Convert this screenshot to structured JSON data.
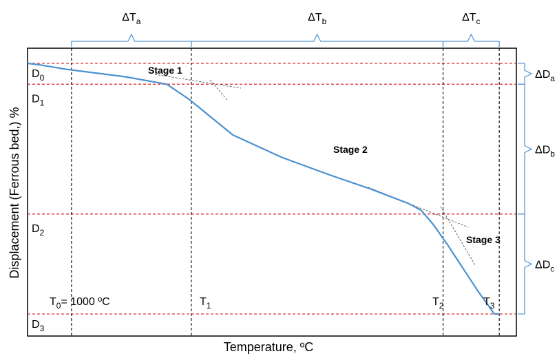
{
  "chart_data": {
    "type": "line",
    "title": "",
    "xlabel": "Temperature, ºC",
    "ylabel": "Displacement (Ferrous bed,) %",
    "grid": false,
    "legend": "none",
    "series": [
      {
        "color": "#4a90d0",
        "x": [
          0,
          2.5,
          8,
          20,
          28.5,
          33,
          42,
          52,
          62,
          70,
          78,
          80.5,
          83,
          86,
          89,
          92,
          95.5,
          96.5
        ],
        "y": [
          0,
          1,
          4,
          9,
          14,
          24,
          48,
          63,
          75,
          84,
          94,
          98.5,
          108,
          122,
          137,
          152,
          168,
          168
        ]
      }
    ],
    "stage_labels": [
      "Stage 1",
      "Stage 2",
      "Stage 3"
    ],
    "temperature_marks": [
      {
        "label_main": "T",
        "label_sub": "0",
        "suffix": "= 1000 ºC",
        "x": 9
      },
      {
        "label_main": "T",
        "label_sub": "1",
        "suffix": "",
        "x": 33.5
      },
      {
        "label_main": "T",
        "label_sub": "2",
        "suffix": "",
        "x": 85
      },
      {
        "label_main": "T",
        "label_sub": "3",
        "suffix": "",
        "x": 96.5
      }
    ],
    "displacement_levels": [
      {
        "label_main": "D",
        "label_sub": "0",
        "y": 0
      },
      {
        "label_main": "D",
        "label_sub": "1",
        "y": 14
      },
      {
        "label_main": "D",
        "label_sub": "2",
        "y": 101
      },
      {
        "label_main": "D",
        "label_sub": "3",
        "y": 168
      }
    ],
    "delta_t": [
      {
        "label_main": "ΔT",
        "label_sub": "a"
      },
      {
        "label_main": "ΔT",
        "label_sub": "b"
      },
      {
        "label_main": "ΔT",
        "label_sub": "c"
      }
    ],
    "delta_d": [
      {
        "label_main": "ΔD",
        "label_sub": "a"
      },
      {
        "label_main": "ΔD",
        "label_sub": "b"
      },
      {
        "label_main": "ΔD",
        "label_sub": "c"
      }
    ],
    "colors": {
      "curve": "#4a90d0",
      "reference_lines": "#e03030",
      "brackets": "#5b9bd5",
      "tangents": "#555555",
      "frame": "#000000"
    }
  }
}
